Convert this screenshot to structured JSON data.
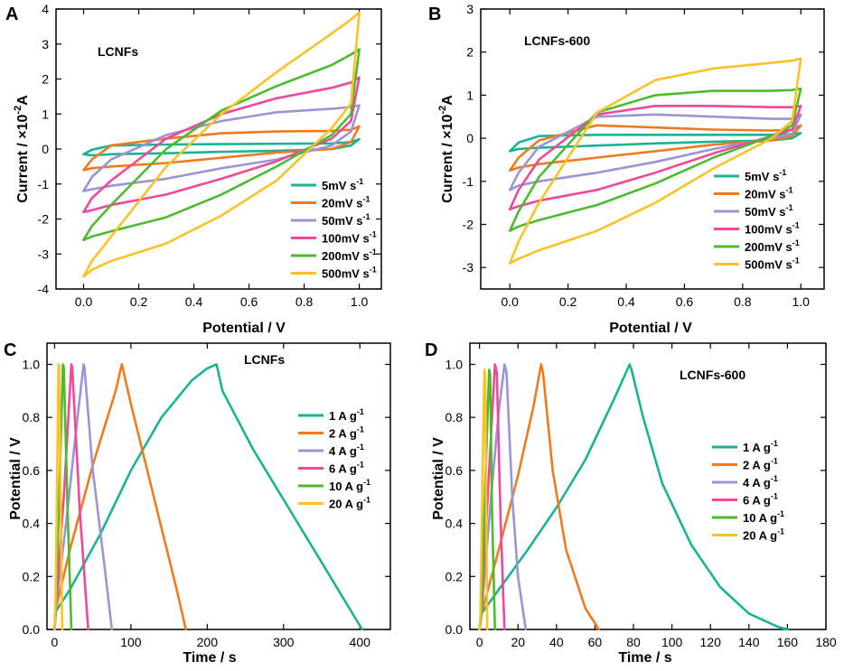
{
  "figure": {
    "panels": [
      "A",
      "B",
      "C",
      "D"
    ]
  },
  "chart_data": [
    {
      "id": "A",
      "type": "line",
      "title": "",
      "annotation": "LCNFs",
      "xlabel": "Potential / V",
      "ylabel_main": "Current / ×10",
      "ylabel_exp": "-2",
      "ylabel_unit": "A",
      "xlim": [
        -0.1,
        1.08
      ],
      "ylim": [
        -4,
        4
      ],
      "xticks": [
        0.0,
        0.2,
        0.4,
        0.6,
        0.8,
        1.0
      ],
      "xtick_labels": [
        "0.0",
        "0.2",
        "0.4",
        "0.6",
        "0.8",
        "1.0"
      ],
      "yticks": [
        -4,
        -3,
        -2,
        -1,
        0,
        1,
        2,
        3,
        4
      ],
      "ytick_labels": [
        "-4",
        "-3",
        "-2",
        "-1",
        "0",
        "1",
        "2",
        "3",
        "4"
      ],
      "legend_position": "bottom-right",
      "series": [
        {
          "name": "5mV s",
          "sup": "-1",
          "color": "#1ab394",
          "x": [
            0.0,
            0.03,
            0.1,
            0.3,
            0.5,
            0.7,
            0.9,
            0.97,
            1.0,
            0.97,
            0.9,
            0.7,
            0.5,
            0.3,
            0.1,
            0.03,
            0.0
          ],
          "y": [
            -0.15,
            -0.02,
            0.1,
            0.13,
            0.14,
            0.15,
            0.16,
            0.2,
            0.28,
            0.1,
            0.0,
            -0.05,
            -0.08,
            -0.12,
            -0.15,
            -0.18,
            -0.15
          ]
        },
        {
          "name": "20mV s",
          "sup": "-1",
          "color": "#f07b1f",
          "x": [
            0.0,
            0.03,
            0.1,
            0.3,
            0.5,
            0.7,
            0.9,
            0.97,
            1.0,
            0.97,
            0.9,
            0.7,
            0.5,
            0.3,
            0.1,
            0.03,
            0.0
          ],
          "y": [
            -0.6,
            -0.3,
            0.1,
            0.3,
            0.45,
            0.5,
            0.52,
            0.55,
            0.65,
            0.2,
            0.0,
            -0.1,
            -0.25,
            -0.4,
            -0.5,
            -0.55,
            -0.6
          ]
        },
        {
          "name": "50mV s",
          "sup": "-1",
          "color": "#9b94d6",
          "x": [
            0.0,
            0.03,
            0.1,
            0.3,
            0.5,
            0.7,
            0.9,
            0.97,
            1.0,
            0.97,
            0.9,
            0.7,
            0.5,
            0.3,
            0.1,
            0.03,
            0.0
          ],
          "y": [
            -1.2,
            -0.8,
            -0.3,
            0.4,
            0.8,
            1.05,
            1.15,
            1.2,
            1.25,
            0.5,
            0.1,
            -0.3,
            -0.55,
            -0.85,
            -1.05,
            -1.15,
            -1.2
          ]
        },
        {
          "name": "100mV s",
          "sup": "-1",
          "color": "#f0489a",
          "x": [
            0.0,
            0.03,
            0.1,
            0.3,
            0.5,
            0.7,
            0.9,
            0.97,
            1.0,
            0.97,
            0.9,
            0.7,
            0.5,
            0.3,
            0.1,
            0.03,
            0.0
          ],
          "y": [
            -1.8,
            -1.4,
            -0.9,
            0.3,
            1.0,
            1.45,
            1.75,
            1.9,
            2.05,
            0.8,
            0.3,
            -0.35,
            -0.85,
            -1.3,
            -1.6,
            -1.75,
            -1.8
          ]
        },
        {
          "name": "200mV s",
          "sup": "-1",
          "color": "#4cbb2e",
          "x": [
            0.0,
            0.03,
            0.1,
            0.3,
            0.5,
            0.7,
            0.9,
            0.97,
            1.0,
            0.97,
            0.9,
            0.7,
            0.5,
            0.3,
            0.1,
            0.03,
            0.0
          ],
          "y": [
            -2.6,
            -2.2,
            -1.6,
            0.0,
            1.1,
            1.8,
            2.4,
            2.7,
            2.85,
            1.0,
            0.4,
            -0.5,
            -1.3,
            -1.95,
            -2.35,
            -2.5,
            -2.6
          ]
        },
        {
          "name": "500mV s",
          "sup": "-1",
          "color": "#fbc227",
          "x": [
            0.0,
            0.03,
            0.1,
            0.3,
            0.5,
            0.7,
            0.9,
            0.97,
            1.0,
            0.97,
            0.9,
            0.7,
            0.5,
            0.3,
            0.1,
            0.03,
            0.0
          ],
          "y": [
            -3.65,
            -3.2,
            -2.5,
            -0.5,
            1.0,
            2.2,
            3.3,
            3.7,
            3.9,
            1.3,
            0.6,
            -0.9,
            -1.9,
            -2.7,
            -3.2,
            -3.45,
            -3.65
          ]
        }
      ]
    },
    {
      "id": "B",
      "type": "line",
      "title": "",
      "annotation": "LCNFs-600",
      "xlabel": "Potential / V",
      "ylabel_main": "Current / ×10",
      "ylabel_exp": "-2",
      "ylabel_unit": "A",
      "xlim": [
        -0.1,
        1.08
      ],
      "ylim": [
        -3.5,
        3
      ],
      "xticks": [
        0.0,
        0.2,
        0.4,
        0.6,
        0.8,
        1.0
      ],
      "xtick_labels": [
        "0.0",
        "0.2",
        "0.4",
        "0.6",
        "0.8",
        "1.0"
      ],
      "yticks": [
        -3,
        -2,
        -1,
        0,
        1,
        2,
        3
      ],
      "ytick_labels": [
        "-3",
        "-2",
        "-1",
        "0",
        "1",
        "2",
        "3"
      ],
      "legend_position": "bottom-right",
      "series": [
        {
          "name": "5mV s",
          "sup": "-1",
          "color": "#1ab394",
          "x": [
            0.0,
            0.03,
            0.1,
            0.3,
            0.5,
            0.7,
            0.9,
            0.97,
            1.0,
            0.97,
            0.9,
            0.7,
            0.5,
            0.3,
            0.1,
            0.03,
            0.0
          ],
          "y": [
            -0.3,
            -0.1,
            0.05,
            0.08,
            0.08,
            0.08,
            0.08,
            0.1,
            0.12,
            0.0,
            -0.05,
            -0.08,
            -0.12,
            -0.17,
            -0.22,
            -0.25,
            -0.3
          ]
        },
        {
          "name": "20mV s",
          "sup": "-1",
          "color": "#f07b1f",
          "x": [
            0.0,
            0.03,
            0.1,
            0.3,
            0.5,
            0.7,
            0.9,
            0.97,
            1.0,
            0.97,
            0.9,
            0.7,
            0.5,
            0.3,
            0.1,
            0.03,
            0.0
          ],
          "y": [
            -0.75,
            -0.45,
            -0.05,
            0.3,
            0.25,
            0.2,
            0.18,
            0.2,
            0.3,
            0.05,
            -0.05,
            -0.15,
            -0.3,
            -0.45,
            -0.6,
            -0.68,
            -0.75
          ]
        },
        {
          "name": "50mV s",
          "sup": "-1",
          "color": "#9b94d6",
          "x": [
            0.0,
            0.03,
            0.1,
            0.3,
            0.5,
            0.7,
            0.9,
            0.97,
            1.0,
            0.97,
            0.9,
            0.7,
            0.5,
            0.3,
            0.1,
            0.03,
            0.0
          ],
          "y": [
            -1.2,
            -0.8,
            -0.2,
            0.5,
            0.55,
            0.5,
            0.45,
            0.45,
            0.55,
            0.1,
            0.0,
            -0.25,
            -0.55,
            -0.8,
            -1.0,
            -1.1,
            -1.2
          ]
        },
        {
          "name": "100mV s",
          "sup": "-1",
          "color": "#f0489a",
          "x": [
            0.0,
            0.03,
            0.1,
            0.3,
            0.5,
            0.7,
            0.9,
            0.97,
            1.0,
            0.97,
            0.9,
            0.7,
            0.5,
            0.3,
            0.1,
            0.03,
            0.0
          ],
          "y": [
            -1.65,
            -1.2,
            -0.5,
            0.55,
            0.75,
            0.75,
            0.72,
            0.72,
            0.75,
            0.2,
            0.05,
            -0.35,
            -0.8,
            -1.2,
            -1.45,
            -1.58,
            -1.65
          ]
        },
        {
          "name": "200mV s",
          "sup": "-1",
          "color": "#4cbb2e",
          "x": [
            0.0,
            0.03,
            0.1,
            0.3,
            0.5,
            0.7,
            0.9,
            0.97,
            1.0,
            0.97,
            0.9,
            0.7,
            0.5,
            0.3,
            0.1,
            0.03,
            0.0
          ],
          "y": [
            -2.15,
            -1.7,
            -0.9,
            0.6,
            1.0,
            1.1,
            1.1,
            1.12,
            1.15,
            0.3,
            0.05,
            -0.45,
            -1.05,
            -1.55,
            -1.9,
            -2.05,
            -2.15
          ]
        },
        {
          "name": "500mV s",
          "sup": "-1",
          "color": "#fbc227",
          "x": [
            0.0,
            0.03,
            0.1,
            0.3,
            0.5,
            0.7,
            0.9,
            0.97,
            1.0,
            0.97,
            0.9,
            0.7,
            0.5,
            0.3,
            0.1,
            0.03,
            0.0
          ],
          "y": [
            -2.9,
            -2.4,
            -1.5,
            0.6,
            1.35,
            1.62,
            1.75,
            1.8,
            1.85,
            0.4,
            0.0,
            -0.7,
            -1.5,
            -2.15,
            -2.6,
            -2.8,
            -2.9
          ]
        }
      ]
    },
    {
      "id": "C",
      "type": "line",
      "title": "",
      "annotation": "LCNFs",
      "xlabel": "Time / s",
      "ylabel_main": "Potential / V",
      "xlim": [
        -10,
        440
      ],
      "ylim": [
        0,
        1.08
      ],
      "xticks": [
        0,
        100,
        200,
        300,
        400
      ],
      "xtick_labels": [
        "0",
        "100",
        "200",
        "300",
        "400"
      ],
      "yticks": [
        0.0,
        0.2,
        0.4,
        0.6,
        0.8,
        1.0
      ],
      "ytick_labels": [
        "0.0",
        "0.2",
        "0.4",
        "0.6",
        "0.8",
        "1.0"
      ],
      "legend_position": "right",
      "series": [
        {
          "name": "1   A g",
          "sup": "-1",
          "color": "#1ab394",
          "x": [
            0,
            2,
            20,
            60,
            100,
            140,
            180,
            200,
            212,
            213,
            220,
            260,
            300,
            340,
            380,
            403
          ],
          "y": [
            0.0,
            0.07,
            0.15,
            0.36,
            0.6,
            0.8,
            0.94,
            0.985,
            1.0,
            0.99,
            0.9,
            0.68,
            0.49,
            0.3,
            0.11,
            0.0
          ]
        },
        {
          "name": "2   A g",
          "sup": "-1",
          "color": "#f07b1f",
          "x": [
            0,
            1,
            20,
            50,
            80,
            88,
            89,
            100,
            130,
            160,
            172
          ],
          "y": [
            0.0,
            0.07,
            0.3,
            0.62,
            0.9,
            1.0,
            0.99,
            0.85,
            0.5,
            0.15,
            0.0
          ]
        },
        {
          "name": "4   A g",
          "sup": "-1",
          "color": "#9b94d6",
          "x": [
            0,
            1,
            15,
            30,
            38,
            39,
            50,
            65,
            75
          ],
          "y": [
            0.0,
            0.07,
            0.4,
            0.8,
            1.0,
            0.99,
            0.6,
            0.25,
            0.0
          ]
        },
        {
          "name": "6   A g",
          "sup": "-1",
          "color": "#f0489a",
          "x": [
            0,
            1,
            12,
            22,
            23,
            33,
            44
          ],
          "y": [
            0.0,
            0.07,
            0.5,
            1.0,
            0.99,
            0.45,
            0.0
          ]
        },
        {
          "name": "10 A g",
          "sup": "-1",
          "color": "#4cbb2e",
          "x": [
            0,
            1,
            6,
            11,
            12,
            17,
            22
          ],
          "y": [
            0.0,
            0.07,
            0.5,
            1.0,
            0.99,
            0.45,
            0.0
          ]
        },
        {
          "name": "20 A g",
          "sup": "-1",
          "color": "#fbc227",
          "x": [
            0,
            1,
            3,
            5,
            6,
            8,
            10
          ],
          "y": [
            0.0,
            0.07,
            0.5,
            1.0,
            0.99,
            0.45,
            0.0
          ]
        }
      ]
    },
    {
      "id": "D",
      "type": "line",
      "title": "",
      "annotation": "LCNFs-600",
      "xlabel": "Time / s",
      "ylabel_main": "Potential / V",
      "xlim": [
        -5,
        180
      ],
      "ylim": [
        0,
        1.08
      ],
      "xticks": [
        0,
        20,
        40,
        60,
        80,
        100,
        120,
        140,
        160,
        180
      ],
      "xtick_labels": [
        "0",
        "20",
        "40",
        "60",
        "80",
        "100",
        "120",
        "140",
        "160",
        "180"
      ],
      "yticks": [
        0.0,
        0.2,
        0.4,
        0.6,
        0.8,
        1.0
      ],
      "ytick_labels": [
        "0.0",
        "0.2",
        "0.4",
        "0.6",
        "0.8",
        "1.0"
      ],
      "legend_position": "right",
      "series": [
        {
          "name": "1   A g",
          "sup": "-1",
          "color": "#1ab394",
          "x": [
            0,
            1,
            10,
            25,
            40,
            55,
            70,
            78,
            79,
            85,
            95,
            110,
            125,
            140,
            155,
            160
          ],
          "y": [
            0.0,
            0.06,
            0.15,
            0.3,
            0.46,
            0.64,
            0.87,
            1.0,
            0.98,
            0.8,
            0.55,
            0.32,
            0.16,
            0.06,
            0.01,
            0.0
          ]
        },
        {
          "name": "2   A g",
          "sup": "-1",
          "color": "#f07b1f",
          "x": [
            0,
            1,
            10,
            20,
            28,
            32,
            33,
            38,
            45,
            55,
            62
          ],
          "y": [
            0.0,
            0.06,
            0.3,
            0.58,
            0.84,
            1.0,
            0.97,
            0.6,
            0.3,
            0.08,
            0.0
          ]
        },
        {
          "name": "4   A g",
          "sup": "-1",
          "color": "#9b94d6",
          "x": [
            0,
            1,
            6,
            10,
            13,
            14,
            17,
            20,
            24
          ],
          "y": [
            0.0,
            0.06,
            0.5,
            0.82,
            1.0,
            0.97,
            0.5,
            0.2,
            0.0
          ]
        },
        {
          "name": "6   A g",
          "sup": "-1",
          "color": "#f0489a",
          "x": [
            0,
            1,
            5,
            8,
            9,
            11,
            13
          ],
          "y": [
            0.0,
            0.06,
            0.6,
            1.0,
            0.97,
            0.4,
            0.0
          ]
        },
        {
          "name": "10 A g",
          "sup": "-1",
          "color": "#4cbb2e",
          "x": [
            0,
            1,
            3,
            5,
            5.5,
            6.5,
            8
          ],
          "y": [
            0.0,
            0.06,
            0.55,
            0.98,
            0.96,
            0.45,
            0.0
          ]
        },
        {
          "name": "20 A g",
          "sup": "-1",
          "color": "#fbc227",
          "x": [
            0,
            0.5,
            1.5,
            2.5,
            3,
            3.5,
            4
          ],
          "y": [
            0.0,
            0.06,
            0.55,
            0.98,
            0.96,
            0.45,
            0.0
          ]
        }
      ]
    }
  ]
}
